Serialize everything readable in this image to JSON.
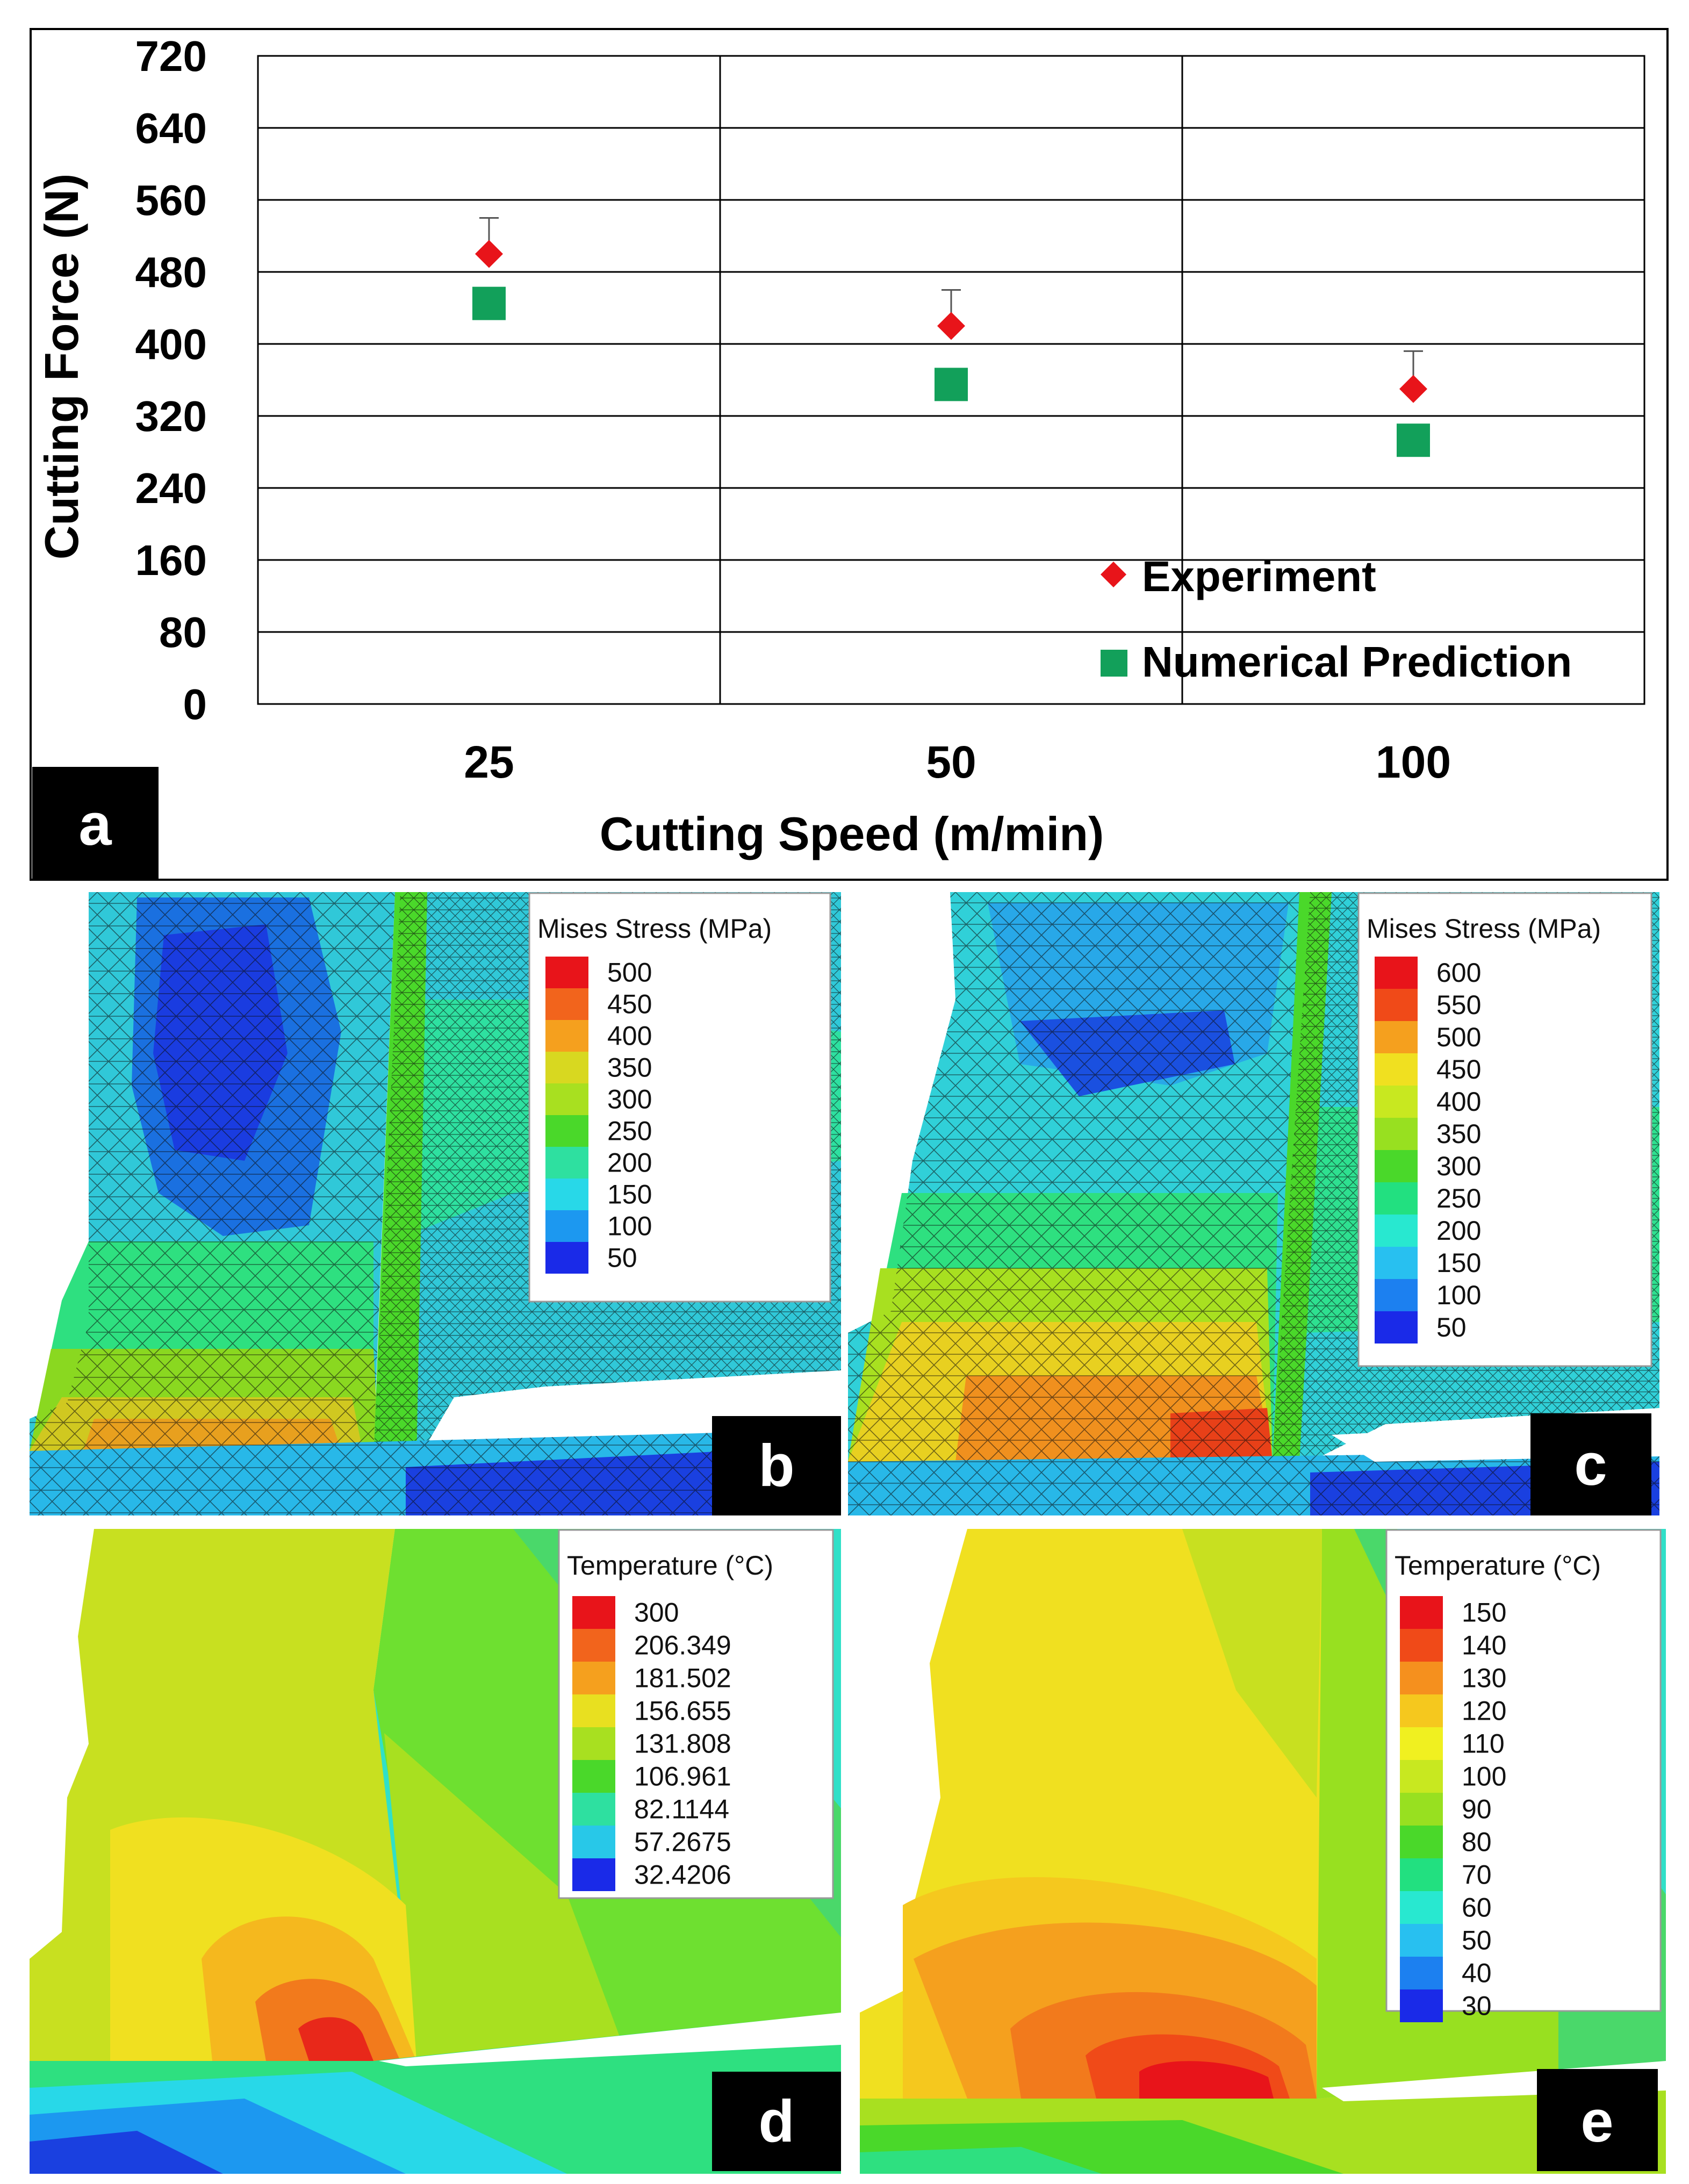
{
  "chart_data": {
    "type": "scatter",
    "title": "",
    "xlabel": "Cutting Speed (m/min)",
    "ylabel": "Cutting Force (N)",
    "categories": [
      "25",
      "50",
      "100"
    ],
    "ylim": [
      0,
      720
    ],
    "yticks": [
      "0",
      "80",
      "160",
      "240",
      "320",
      "400",
      "480",
      "560",
      "640",
      "720"
    ],
    "grid": true,
    "legend_position": "bottom-right",
    "series": [
      {
        "name": "Experiment",
        "marker": "diamond",
        "color": "#e8141a",
        "values": [
          500,
          420,
          350
        ],
        "error_upper": [
          540,
          460,
          392
        ]
      },
      {
        "name": "Numerical Prediction",
        "marker": "square",
        "color": "#12a05a",
        "values": [
          445,
          355,
          293
        ]
      }
    ],
    "panel_label": "a"
  },
  "figures": {
    "b": {
      "label": "b",
      "legend_title": "Mises Stress (MPa)",
      "values": [
        "500",
        "450",
        "400",
        "350",
        "300",
        "250",
        "200",
        "150",
        "100",
        "50"
      ],
      "colors": [
        "#e8141a",
        "#f2641c",
        "#f5a01e",
        "#d8d820",
        "#a8e020",
        "#4ad82a",
        "#2ee0a0",
        "#28d8e8",
        "#1c98f0",
        "#1a2ae8"
      ]
    },
    "c": {
      "label": "c",
      "legend_title": "Mises Stress (MPa)",
      "values": [
        "600",
        "550",
        "500",
        "450",
        "400",
        "350",
        "300",
        "250",
        "200",
        "150",
        "100",
        "50"
      ],
      "colors": [
        "#e8141a",
        "#f04a18",
        "#f5a01e",
        "#f0e020",
        "#c8e820",
        "#98e020",
        "#4ad82a",
        "#22e080",
        "#28e8d0",
        "#28c0f0",
        "#1c80f0",
        "#1a2ae8"
      ]
    },
    "d": {
      "label": "d",
      "legend_title": "Temperature (°C)",
      "values": [
        "300",
        "206.349",
        "181.502",
        "156.655",
        "131.808",
        "106.961",
        "82.1144",
        "57.2675",
        "32.4206"
      ],
      "colors": [
        "#e8141a",
        "#f2641c",
        "#f5a01e",
        "#e8e020",
        "#a8e020",
        "#4ad82a",
        "#2ee0a0",
        "#28c8e8",
        "#1a2ae8"
      ]
    },
    "e": {
      "label": "e",
      "legend_title": "Temperature (°C)",
      "values": [
        "150",
        "140",
        "130",
        "120",
        "110",
        "100",
        "90",
        "80",
        "70",
        "60",
        "50",
        "40",
        "30"
      ],
      "colors": [
        "#e8141a",
        "#f04a18",
        "#f5901e",
        "#f5c81e",
        "#f0f020",
        "#c8e820",
        "#98e020",
        "#4ad82a",
        "#22e080",
        "#28e8d0",
        "#28c0f0",
        "#1c80f0",
        "#1a2ae8"
      ]
    }
  }
}
